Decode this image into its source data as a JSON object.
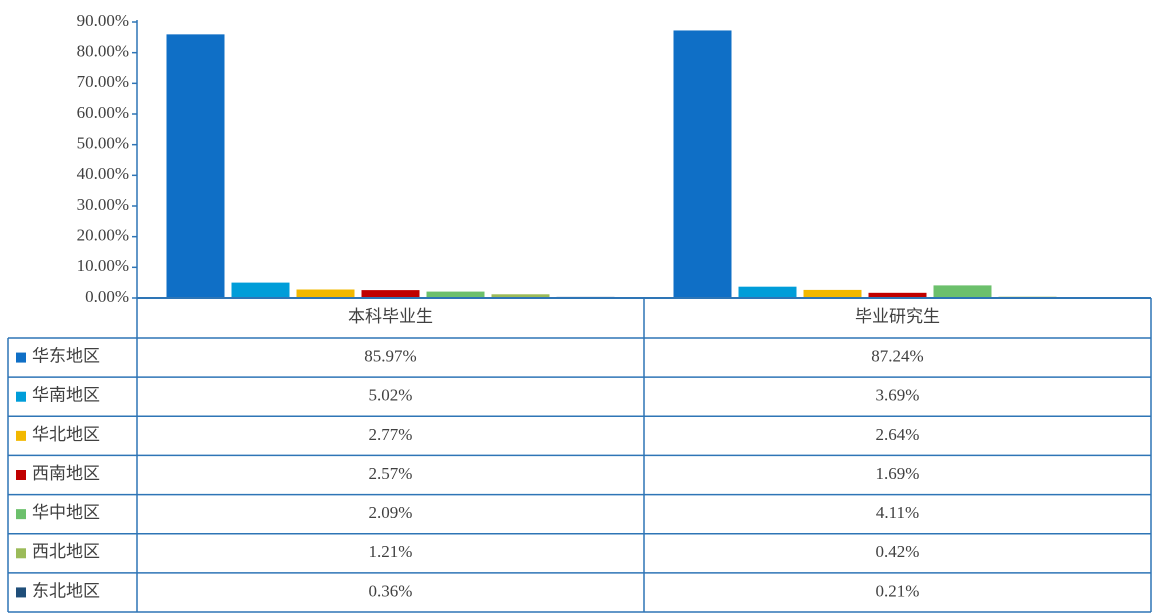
{
  "chart_data": {
    "type": "bar",
    "categories": [
      "本科毕业生",
      "毕业研究生"
    ],
    "series": [
      {
        "name": "华东地区",
        "color": "#0f6fc6",
        "values": [
          85.97,
          87.24
        ],
        "value_labels": [
          "85.97%",
          "87.24%"
        ]
      },
      {
        "name": "华南地区",
        "color": "#009dd9",
        "values": [
          5.02,
          3.69
        ],
        "value_labels": [
          "5.02%",
          "3.69%"
        ]
      },
      {
        "name": "华北地区",
        "color": "#f2b800",
        "values": [
          2.77,
          2.64
        ],
        "value_labels": [
          "2.77%",
          "2.64%"
        ]
      },
      {
        "name": "西南地区",
        "color": "#c00000",
        "values": [
          2.57,
          1.69
        ],
        "value_labels": [
          "2.57%",
          "1.69%"
        ]
      },
      {
        "name": "华中地区",
        "color": "#6cc06c",
        "values": [
          2.09,
          4.11
        ],
        "value_labels": [
          "2.09%",
          "4.11%"
        ]
      },
      {
        "name": "西北地区",
        "color": "#9bbb59",
        "values": [
          1.21,
          0.42
        ],
        "value_labels": [
          "1.21%",
          "0.42%"
        ]
      },
      {
        "name": "东北地区",
        "color": "#1f4e79",
        "values": [
          0.36,
          0.21
        ],
        "value_labels": [
          "0.36%",
          "0.21%"
        ]
      }
    ],
    "ylim": [
      0,
      90
    ],
    "yticks": [
      {
        "value": 0,
        "label": "0.00%"
      },
      {
        "value": 10,
        "label": "10.00%"
      },
      {
        "value": 20,
        "label": "20.00%"
      },
      {
        "value": 30,
        "label": "30.00%"
      },
      {
        "value": 40,
        "label": "40.00%"
      },
      {
        "value": 50,
        "label": "50.00%"
      },
      {
        "value": 60,
        "label": "60.00%"
      },
      {
        "value": 70,
        "label": "70.00%"
      },
      {
        "value": 80,
        "label": "80.00%"
      },
      {
        "value": 90,
        "label": "90.00%"
      }
    ]
  }
}
